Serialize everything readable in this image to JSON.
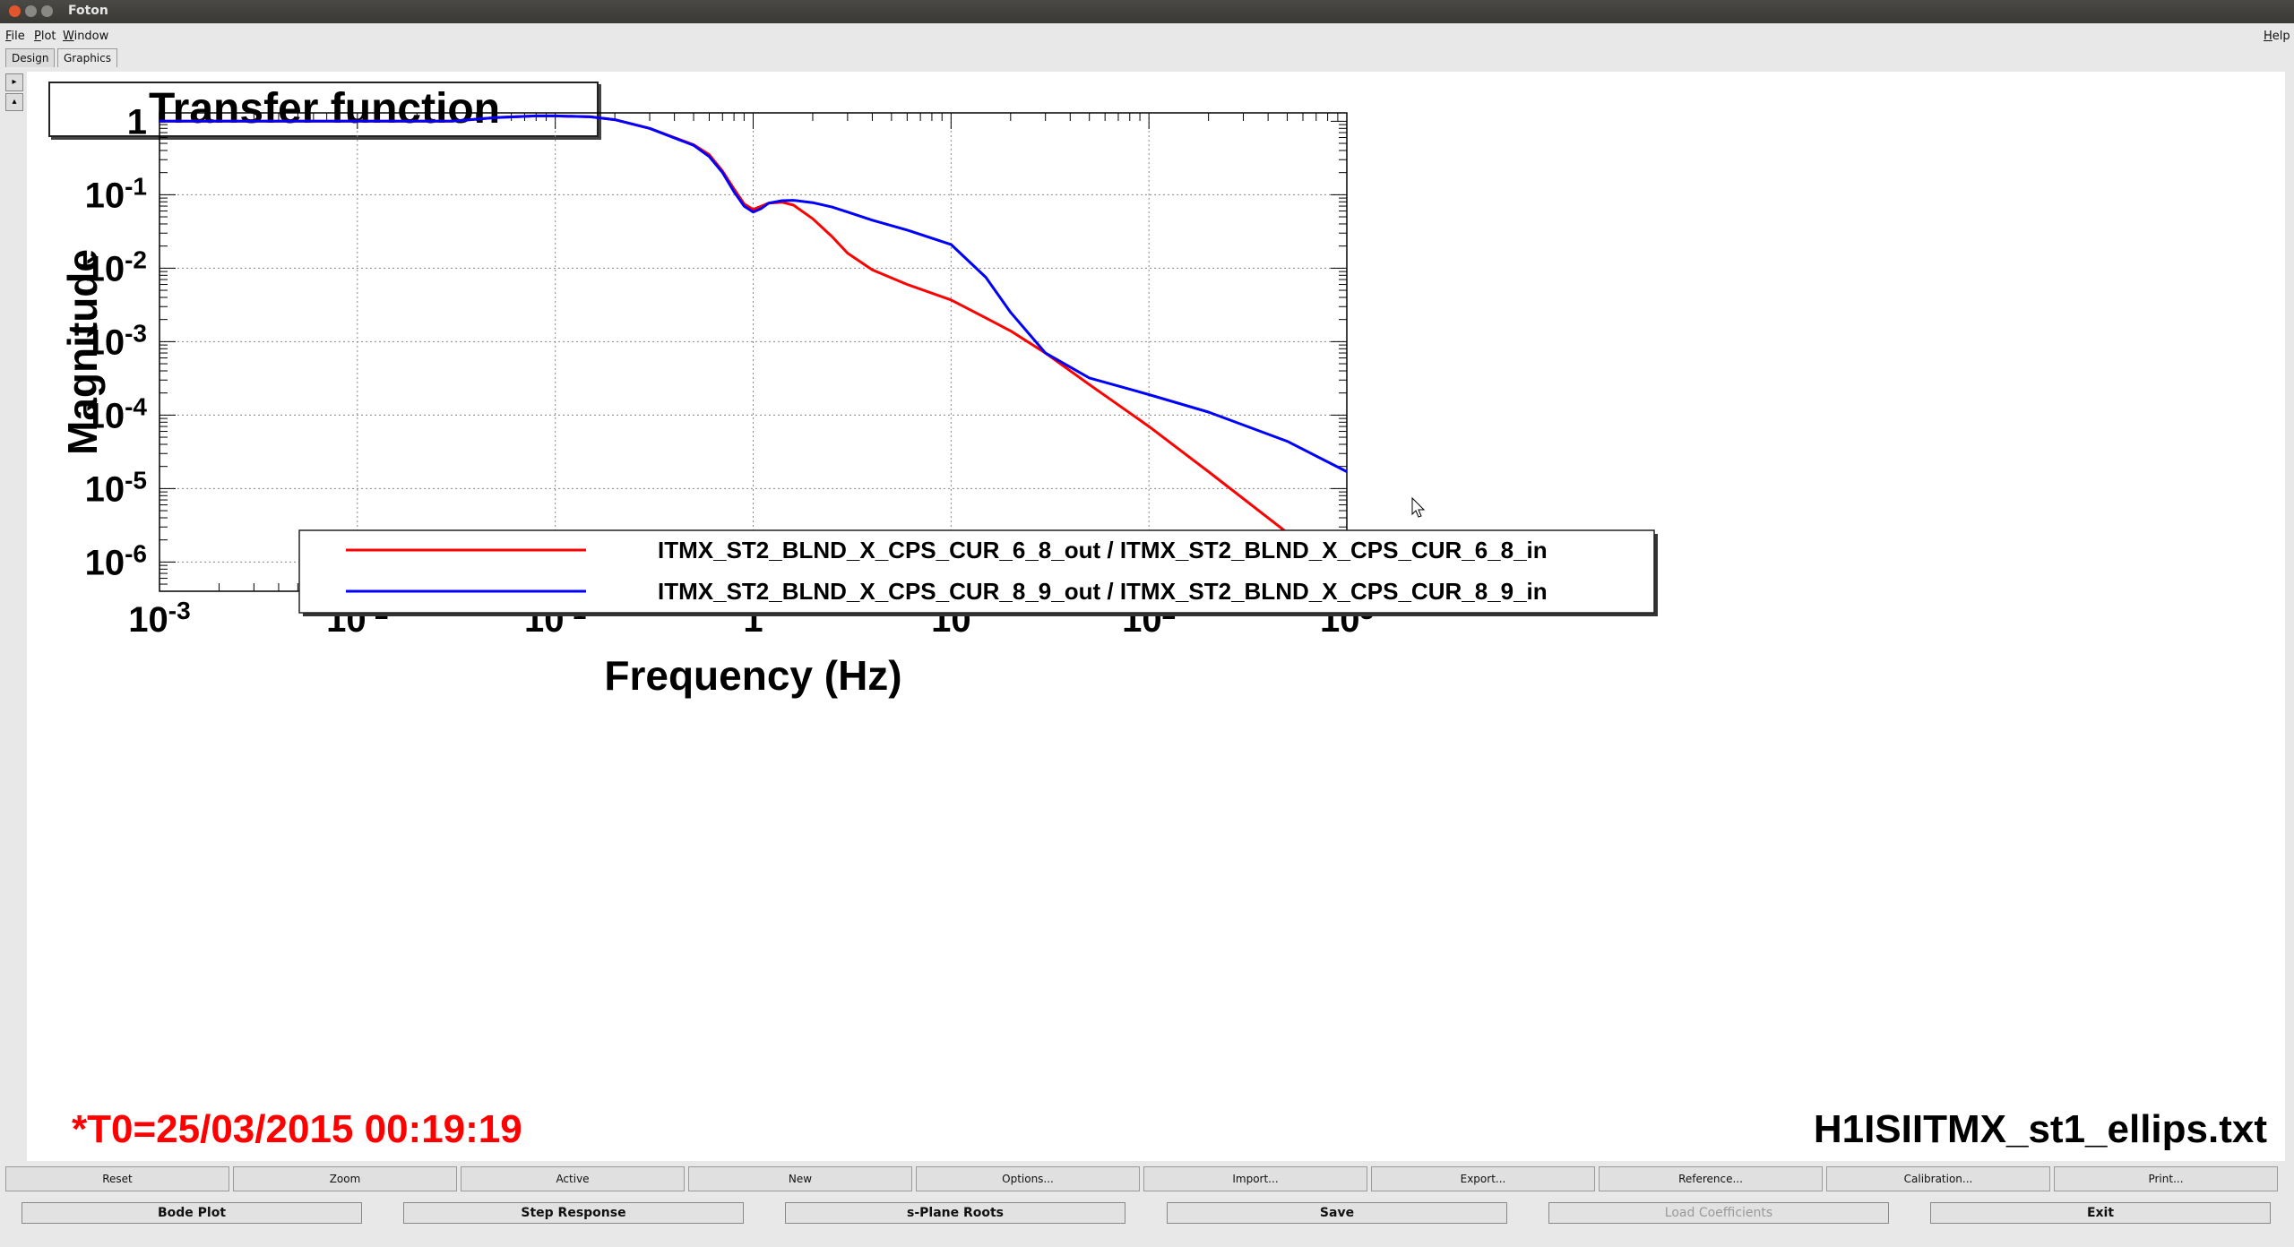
{
  "window": {
    "title": "Foton"
  },
  "menu": [
    "File",
    "Plot",
    "Window"
  ],
  "help_label": "Help",
  "tabs": [
    "Design",
    "Graphics"
  ],
  "plot": {
    "title_box": "Transfer function",
    "t0_label": "*T0=25/03/2015 00:19:19",
    "filename": "H1ISIITMX_st1_ellips.txt"
  },
  "colors": {
    "red_series": "#ff0000",
    "blue_series": "#0000ff",
    "t0_text": "#ff0000"
  },
  "chart_data": {
    "type": "line",
    "xlabel": "Frequency (Hz)",
    "ylabel": "Magnitude",
    "xscale": "log",
    "yscale": "log",
    "xlim": [
      0.001,
      1000
    ],
    "ylim": [
      4e-07,
      1.3
    ],
    "grid": true,
    "legend_position": "bottom-left",
    "x_ticks": [
      {
        "value": 0.001,
        "base": "10",
        "exp": "-3"
      },
      {
        "value": 0.01,
        "base": "10",
        "exp": "-2"
      },
      {
        "value": 0.1,
        "base": "10",
        "exp": "-1"
      },
      {
        "value": 1,
        "base": "1",
        "exp": ""
      },
      {
        "value": 10,
        "base": "10",
        "exp": ""
      },
      {
        "value": 100,
        "base": "10",
        "exp": "2"
      },
      {
        "value": 1000,
        "base": "10",
        "exp": "3"
      }
    ],
    "y_ticks": [
      {
        "value": 1,
        "base": "1",
        "exp": ""
      },
      {
        "value": 0.1,
        "base": "10",
        "exp": "-1"
      },
      {
        "value": 0.01,
        "base": "10",
        "exp": "-2"
      },
      {
        "value": 0.001,
        "base": "10",
        "exp": "-3"
      },
      {
        "value": 0.0001,
        "base": "10",
        "exp": "-4"
      },
      {
        "value": 1e-05,
        "base": "10",
        "exp": "-5"
      },
      {
        "value": 1e-06,
        "base": "10",
        "exp": "-6"
      }
    ],
    "series": [
      {
        "name": "ITMX_ST2_BLND_X_CPS_CUR_6_8_out / ITMX_ST2_BLND_X_CPS_CUR_6_8_in",
        "color": "#ff0000",
        "x": [
          0.001,
          0.01,
          0.03,
          0.05,
          0.08,
          0.1,
          0.15,
          0.2,
          0.3,
          0.5,
          0.6,
          0.7,
          0.8,
          0.9,
          1.0,
          1.1,
          1.2,
          1.4,
          1.6,
          2,
          2.5,
          3,
          4,
          6,
          10,
          15,
          20,
          30,
          50,
          100,
          200,
          500,
          1000
        ],
        "y": [
          1,
          1,
          1,
          1.12,
          1.18,
          1.18,
          1.15,
          1.05,
          0.8,
          0.48,
          0.35,
          0.21,
          0.12,
          0.075,
          0.063,
          0.07,
          0.077,
          0.079,
          0.072,
          0.047,
          0.027,
          0.016,
          0.0095,
          0.006,
          0.0037,
          0.0021,
          0.0014,
          0.0007,
          0.00026,
          7e-05,
          1.7e-05,
          2.5e-06,
          5.5e-07
        ]
      },
      {
        "name": "ITMX_ST2_BLND_X_CPS_CUR_8_9_out / ITMX_ST2_BLND_X_CPS_CUR_8_9_in",
        "color": "#0000ff",
        "x": [
          0.001,
          0.01,
          0.03,
          0.05,
          0.08,
          0.1,
          0.15,
          0.2,
          0.3,
          0.5,
          0.6,
          0.7,
          0.8,
          0.9,
          1.0,
          1.1,
          1.2,
          1.4,
          1.6,
          2,
          2.5,
          3,
          4,
          6,
          10,
          15,
          20,
          30,
          50,
          100,
          200,
          500,
          1000
        ],
        "y": [
          1,
          1,
          1,
          1.12,
          1.18,
          1.18,
          1.15,
          1.05,
          0.8,
          0.47,
          0.33,
          0.2,
          0.11,
          0.07,
          0.058,
          0.065,
          0.077,
          0.083,
          0.084,
          0.078,
          0.068,
          0.058,
          0.045,
          0.033,
          0.021,
          0.0075,
          0.0025,
          0.0007,
          0.00032,
          0.00019,
          0.00011,
          4.4e-05,
          1.7e-05
        ]
      }
    ]
  },
  "buttons_row1": [
    "Reset",
    "Zoom",
    "Active",
    "New",
    "Options...",
    "Import...",
    "Export...",
    "Reference...",
    "Calibration...",
    "Print..."
  ],
  "buttons_row2": [
    "Bode Plot",
    "Step Response",
    "s-Plane Roots",
    "Save",
    "Load Coefficients",
    "Exit"
  ]
}
